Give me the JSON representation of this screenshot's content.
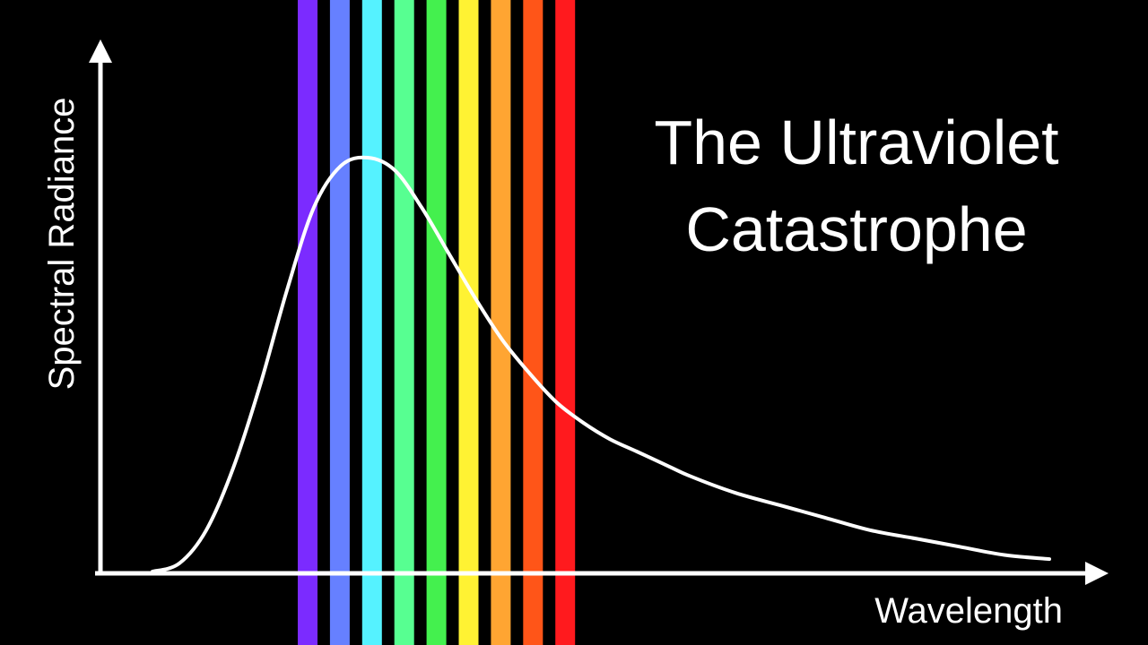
{
  "title": {
    "line1": "The Ultraviolet",
    "line2": "Catastrophe"
  },
  "axes": {
    "y_label": "Spectral Radiance",
    "x_label": "Wavelength"
  },
  "spectrum_bands": [
    {
      "name": "violet",
      "color": "#7B2BFF"
    },
    {
      "name": "blue",
      "color": "#6680FF"
    },
    {
      "name": "cyan",
      "color": "#55F2FF"
    },
    {
      "name": "light-green",
      "color": "#57FF91"
    },
    {
      "name": "green",
      "color": "#44F04E"
    },
    {
      "name": "yellow",
      "color": "#FFF233"
    },
    {
      "name": "light-orange",
      "color": "#FFA532"
    },
    {
      "name": "orange",
      "color": "#FF5518"
    },
    {
      "name": "red",
      "color": "#FF1A1E"
    }
  ],
  "colors": {
    "background": "#000000",
    "foreground": "#ffffff"
  },
  "chart_data": {
    "type": "line",
    "series": [
      {
        "x": [
          0.0,
          0.3,
          0.6,
          0.9,
          1.2,
          1.5,
          1.8,
          2.1,
          2.4,
          2.7,
          3.0,
          3.3,
          3.6,
          3.9,
          4.2,
          4.5,
          4.8,
          5.1,
          5.4,
          5.7,
          6.0,
          6.5,
          7.0,
          7.5,
          8.0,
          8.5,
          9.0,
          9.5,
          10.0
        ],
        "y": [
          0.0,
          0.02,
          0.1,
          0.25,
          0.45,
          0.68,
          0.88,
          0.98,
          1.0,
          0.97,
          0.88,
          0.77,
          0.66,
          0.56,
          0.48,
          0.41,
          0.36,
          0.32,
          0.29,
          0.26,
          0.23,
          0.19,
          0.16,
          0.13,
          0.1,
          0.08,
          0.06,
          0.04,
          0.03
        ]
      }
    ],
    "xlabel": "Wavelength",
    "ylabel": "Spectral Radiance",
    "xlim": [
      0,
      10.6
    ],
    "ylim": [
      0,
      1.05
    ],
    "grid": false
  }
}
